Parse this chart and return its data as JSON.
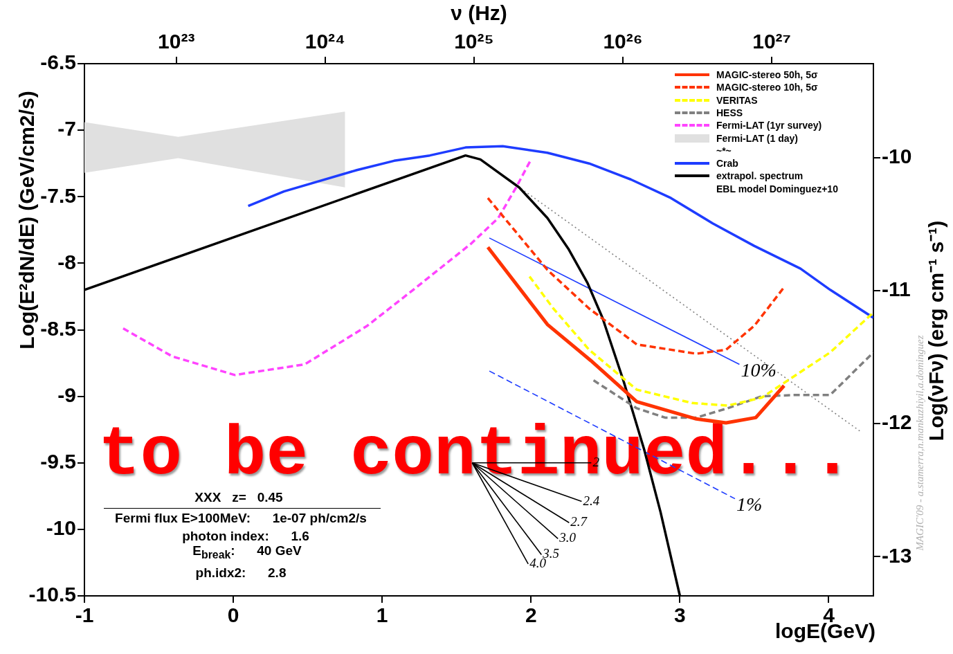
{
  "chart_data": {
    "type": "line",
    "xlabel": "logE(GeV)",
    "ylabel": "Log(E²dN/dE) (GeV/cm2/s)",
    "y2label": "Log(νFν) (erg cm⁻¹ s⁻¹)",
    "x2label": "ν (Hz)",
    "xlim": [
      -1,
      4.3
    ],
    "xticks": [
      -1,
      0,
      1,
      2,
      3,
      4
    ],
    "ylim": [
      -10.5,
      -6.5
    ],
    "yticks": [
      -10.5,
      -10,
      -9.5,
      -9,
      -8.5,
      -8,
      -7.5,
      -7,
      -6.5
    ],
    "y2lim": [
      -13.295,
      -9.295
    ],
    "y2ticks": [
      -13,
      -12,
      -11,
      -10
    ],
    "x2lim": [
      2.415e+22,
      4.82e+27
    ],
    "x2ticks": [
      {
        "value": 1e+23,
        "label": "10²³"
      },
      {
        "value": 1e+24,
        "label": "10²⁴"
      },
      {
        "value": 1e+25,
        "label": "10²⁵"
      },
      {
        "value": 1e+26,
        "label": "10²⁶"
      },
      {
        "value": 1e+27,
        "label": "10²⁷"
      }
    ],
    "log": "x2",
    "grid": false,
    "legend": "top right",
    "marker": "none",
    "series": [
      {
        "name": "MAGIC-stereo 50h, 5σ",
        "type": "line",
        "line_style": "solid",
        "color": "#ff3300",
        "x": [
          1.71,
          2.11,
          2.4,
          2.71,
          3.11,
          3.31,
          3.51,
          3.7
        ],
        "values": [
          -7.88,
          -8.46,
          -8.73,
          -9.04,
          -9.17,
          -9.2,
          -9.16,
          -8.92
        ]
      },
      {
        "name": "MAGIC-stereo 10h, 5σ",
        "type": "line",
        "line_style": "dashed",
        "color": "#ff3300",
        "x": [
          1.71,
          2.11,
          2.39,
          2.71,
          3.11,
          3.31,
          3.5,
          3.7
        ],
        "values": [
          -7.51,
          -8.05,
          -8.34,
          -8.61,
          -8.68,
          -8.65,
          -8.47,
          -8.18
        ]
      },
      {
        "name": "VERITAS",
        "type": "line",
        "line_style": "dashed",
        "color": "#ffff00",
        "x": [
          1.99,
          2.15,
          2.39,
          2.71,
          3.08,
          3.32,
          3.55,
          4.01,
          4.3
        ],
        "values": [
          -8.1,
          -8.34,
          -8.65,
          -8.95,
          -9.05,
          -9.07,
          -9.01,
          -8.67,
          -8.37
        ]
      },
      {
        "name": "HESS",
        "type": "line",
        "line_style": "dashed",
        "color": "#808080",
        "x": [
          2.42,
          2.71,
          2.9,
          3.11,
          3.32,
          3.55,
          3.78,
          4.01,
          4.3
        ],
        "values": [
          -8.88,
          -9.09,
          -9.16,
          -9.16,
          -9.09,
          -9,
          -8.99,
          -8.99,
          -8.67
        ]
      },
      {
        "name": "Fermi-LAT (1yr survey)",
        "type": "line",
        "line_style": "dashed",
        "color": "#ff44ff",
        "x": [
          -0.74,
          -0.41,
          0.01,
          0.48,
          0.9,
          1.22,
          1.6,
          1.78,
          1.9,
          2.0
        ],
        "values": [
          -8.49,
          -8.7,
          -8.84,
          -8.76,
          -8.47,
          -8.19,
          -7.85,
          -7.66,
          -7.43,
          -7.22
        ]
      },
      {
        "name": "Fermi-LAT (1 day)",
        "type": "area",
        "color": "#e0e0e0",
        "x": [
          -1,
          -0.37,
          0.75
        ],
        "values": [
          null,
          null,
          null
        ],
        "lower": [
          -7.32,
          -7.21,
          -7.43
        ],
        "upper": [
          -6.94,
          -7.05,
          -6.86
        ]
      },
      {
        "name": "Crab",
        "type": "line",
        "line_style": "solid",
        "color": "#1e3cff",
        "x": [
          0.1,
          0.34,
          0.83,
          1.08,
          1.32,
          1.56,
          1.81,
          2.11,
          2.39,
          2.67,
          2.94,
          3.22,
          3.5,
          3.81,
          4.01,
          4.3
        ],
        "values": [
          -7.57,
          -7.46,
          -7.3,
          -7.23,
          -7.19,
          -7.13,
          -7.12,
          -7.17,
          -7.25,
          -7.37,
          -7.51,
          -7.7,
          -7.87,
          -8.04,
          -8.2,
          -8.41
        ]
      },
      {
        "name": "extrapol. spectrum",
        "type": "line",
        "line_style": "solid",
        "color": "#000000",
        "x": [
          -1,
          1.56,
          1.66,
          1.92,
          2.11,
          2.25,
          2.38,
          2.48,
          2.62,
          2.76,
          2.87,
          3.0
        ],
        "values": [
          -8.2,
          -7.19,
          -7.22,
          -7.43,
          -7.66,
          -7.89,
          -8.15,
          -8.41,
          -8.88,
          -9.4,
          -9.87,
          -10.5
        ]
      },
      {
        "type": "line",
        "line_style": "dotted",
        "color": "#808080",
        "x": [
          1.66,
          4.22
        ],
        "values": [
          -7.22,
          -9.27
        ]
      },
      {
        "type": "line",
        "line_style": "solid",
        "color": "#1e3cff",
        "x": [
          1.72,
          3.4
        ],
        "values": [
          -7.81,
          -8.76
        ]
      },
      {
        "type": "line",
        "line_style": "dashed",
        "color": "#1e3cff",
        "x": [
          1.72,
          3.37
        ],
        "values": [
          -8.81,
          -9.77
        ]
      },
      {
        "type": "line",
        "line_style": "solid",
        "color": "#000000",
        "x": [
          1.605,
          2.405
        ],
        "values": [
          -9.5,
          -9.5
        ]
      },
      {
        "type": "line",
        "line_style": "solid",
        "color": "#000000",
        "x": [
          1.605,
          2.34
        ],
        "values": [
          -9.5,
          -9.79
        ]
      },
      {
        "type": "line",
        "line_style": "solid",
        "color": "#000000",
        "x": [
          1.605,
          2.256
        ],
        "values": [
          -9.5,
          -9.95
        ]
      },
      {
        "type": "line",
        "line_style": "solid",
        "color": "#000000",
        "x": [
          1.605,
          2.181
        ],
        "values": [
          -9.5,
          -10.07
        ]
      },
      {
        "type": "line",
        "line_style": "solid",
        "color": "#000000",
        "x": [
          1.605,
          2.07
        ],
        "values": [
          -9.5,
          -10.19
        ]
      },
      {
        "type": "line",
        "line_style": "solid",
        "color": "#000000",
        "x": [
          1.605,
          1.981
        ],
        "values": [
          -9.5,
          -10.26
        ]
      }
    ],
    "annotations": [
      "to be continued...",
      "XXX   z=   0.45",
      "Fermi flux E>100MeV:      1e-07 ph/cm2/s",
      "photon index:      1.6",
      "E$_{break}$:      40 GeV",
      "ph.idx2:      2.8",
      "MAGIC'09 - a.stamerra,n.mankuzhiyil,a.dominguez",
      "~*~",
      "EBL model Dominguez+10",
      {
        "text": "10%",
        "x": 3.4,
        "y": -8.76
      },
      {
        "text": "1%",
        "x": 3.37,
        "y": -9.77
      },
      {
        "text": "2",
        "x": 2.405,
        "y": -9.5
      },
      {
        "text": "2.4",
        "x": 2.34,
        "y": -9.79
      },
      {
        "text": "2.7",
        "x": 2.256,
        "y": -9.95
      },
      {
        "text": "3.0",
        "x": 2.181,
        "y": -10.07
      },
      {
        "text": "3.5",
        "x": 2.07,
        "y": -10.19
      },
      {
        "text": "4.0",
        "x": 1.981,
        "y": -10.26
      }
    ]
  }
}
